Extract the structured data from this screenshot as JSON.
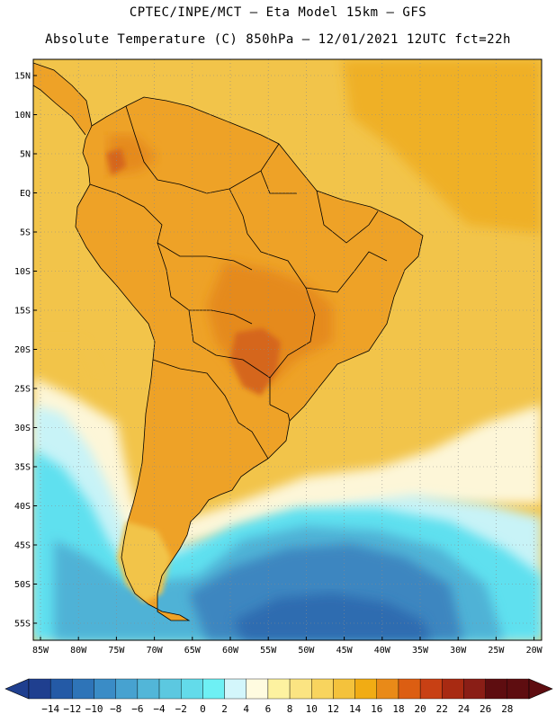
{
  "header": {
    "line1": "CPTEC/INPE/MCT –  Eta Model 15km – GFS",
    "line2": "Absolute Temperature (C) 850hPa – 12/01/2021 12UTC fct=22h"
  },
  "map": {
    "lat_labels": [
      "15N",
      "10N",
      "5N",
      "EQ",
      "5S",
      "10S",
      "15S",
      "20S",
      "25S",
      "30S",
      "35S",
      "40S",
      "45S",
      "50S",
      "55S"
    ],
    "lon_labels": [
      "85W",
      "80W",
      "75W",
      "70W",
      "65W",
      "60W",
      "55W",
      "50W",
      "45W",
      "40W",
      "35W",
      "30W",
      "25W",
      "20W"
    ]
  },
  "colorbar": {
    "labels": [
      "−14",
      "−12",
      "−10",
      "−8",
      "−6",
      "−4",
      "−2",
      "0",
      "2",
      "4",
      "6",
      "8",
      "10",
      "12",
      "14",
      "16",
      "18",
      "20",
      "22",
      "24",
      "26",
      "28"
    ],
    "colors": [
      "#1f3f8f",
      "#245aa6",
      "#2e74b8",
      "#3a8cc6",
      "#47a2d0",
      "#52b6d8",
      "#5cc8e0",
      "#63dbea",
      "#6ef0f4",
      "#d3f6fb",
      "#fffbe0",
      "#fdf2a0",
      "#fbe482",
      "#f8d45e",
      "#f4c23c",
      "#f1ac14",
      "#e98a18",
      "#dc5e12",
      "#c84014",
      "#a82a12",
      "#8a1e16",
      "#5e0d10"
    ]
  },
  "palette": {
    "ocean_warm": "#f2c44a",
    "ocean_hot": "#efb028",
    "land": "#eea227",
    "land_hot": "#e58a1e",
    "land_hotter": "#d5661c",
    "cream": "#fdf6d8",
    "pale_cyan": "#c8f3f7",
    "cyan": "#5ee0ef",
    "mid_blue": "#4fb2d6",
    "deep_blue": "#3d86c0",
    "deepest_blue": "#2f6cb0"
  }
}
